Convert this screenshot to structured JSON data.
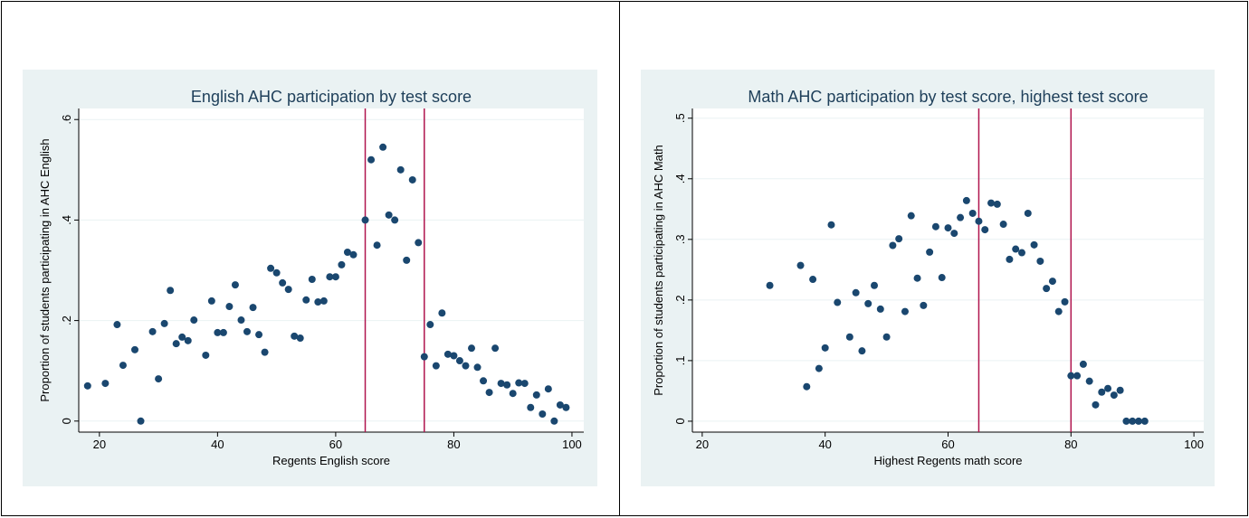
{
  "chart_data": [
    {
      "type": "scatter",
      "title": "English AHC participation by test score",
      "x_label": "Regents English score",
      "y_label": "Proportion of students participating in AHC English",
      "color": "#1a476f",
      "line_color": "#b0144e",
      "grid": true,
      "xlim": [
        16.5,
        102
      ],
      "xticks": [
        20,
        40,
        60,
        80,
        100
      ],
      "ylim": [
        -0.022,
        0.622
      ],
      "yticks": [
        {
          "value": 0,
          "label": "0"
        },
        {
          "value": 0.2,
          "label": ".2"
        },
        {
          "value": 0.4,
          "label": ".4"
        },
        {
          "value": 0.6,
          "label": ".6"
        }
      ],
      "vlines": [
        65,
        75
      ],
      "x": [
        18,
        21,
        23,
        24,
        26,
        27,
        29,
        30,
        31,
        32,
        33,
        34,
        35,
        36,
        38,
        39,
        40,
        41,
        42,
        43,
        44,
        45,
        46,
        47,
        48,
        49,
        50,
        51,
        52,
        53,
        54,
        55,
        56,
        57,
        58,
        59,
        60,
        61,
        62,
        63,
        65,
        66,
        67,
        68,
        69,
        70,
        71,
        72,
        73,
        74,
        75,
        76,
        77,
        78,
        79,
        80,
        81,
        82,
        83,
        84,
        85,
        86,
        87,
        88,
        89,
        90,
        91,
        92,
        93,
        94,
        95,
        96,
        97,
        98,
        99
      ],
      "values": [
        0.07,
        0.075,
        0.192,
        0.111,
        0.142,
        0,
        0.178,
        0.084,
        0.194,
        0.26,
        0.154,
        0.167,
        0.16,
        0.201,
        0.131,
        0.239,
        0.176,
        0.176,
        0.228,
        0.271,
        0.201,
        0.178,
        0.226,
        0.172,
        0.137,
        0.304,
        0.295,
        0.275,
        0.262,
        0.169,
        0.165,
        0.241,
        0.282,
        0.237,
        0.239,
        0.287,
        0.287,
        0.311,
        0.336,
        0.331,
        0.4,
        0.52,
        0.35,
        0.545,
        0.41,
        0.4,
        0.5,
        0.32,
        0.48,
        0.355,
        0.128,
        0.192,
        0.11,
        0.215,
        0.133,
        0.13,
        0.12,
        0.11,
        0.145,
        0.107,
        0.08,
        0.057,
        0.145,
        0.075,
        0.072,
        0.055,
        0.076,
        0.075,
        0.027,
        0.052,
        0.014,
        0.064,
        0,
        0.032,
        0.027
      ]
    },
    {
      "type": "scatter",
      "title": "Math AHC participation by test score, highest test score",
      "x_label": "Highest Regents math score",
      "y_label": "Proportion of students participating in AHC Math",
      "color": "#1a476f",
      "line_color": "#b0144e",
      "grid": true,
      "xlim": [
        18.4,
        101.6
      ],
      "xticks": [
        20,
        40,
        60,
        80,
        100
      ],
      "ylim": [
        -0.018,
        0.516
      ],
      "yticks": [
        {
          "value": 0,
          "label": "0"
        },
        {
          "value": 0.1,
          "label": ".1"
        },
        {
          "value": 0.2,
          "label": ".2"
        },
        {
          "value": 0.3,
          "label": ".3"
        },
        {
          "value": 0.4,
          "label": ".4"
        },
        {
          "value": 0.5,
          "label": ".5"
        }
      ],
      "vlines": [
        65,
        80
      ],
      "x": [
        31,
        36,
        37,
        38,
        39,
        40,
        41,
        42,
        44,
        45,
        46,
        47,
        48,
        49,
        50,
        51,
        52,
        53,
        54,
        55,
        56,
        57,
        58,
        59,
        60,
        61,
        62,
        63,
        64,
        65,
        66,
        67,
        68,
        69,
        70,
        71,
        72,
        73,
        74,
        75,
        76,
        77,
        78,
        79,
        80,
        81,
        82,
        83,
        84,
        85,
        86,
        87,
        88,
        89,
        90,
        91,
        92
      ],
      "values": [
        0.224,
        0.257,
        0.057,
        0.234,
        0.087,
        0.121,
        0.324,
        0.196,
        0.139,
        0.212,
        0.116,
        0.194,
        0.224,
        0.185,
        0.139,
        0.29,
        0.301,
        0.181,
        0.339,
        0.236,
        0.191,
        0.279,
        0.321,
        0.237,
        0.319,
        0.31,
        0.336,
        0.364,
        0.343,
        0.33,
        0.316,
        0.36,
        0.358,
        0.325,
        0.267,
        0.284,
        0.278,
        0.343,
        0.291,
        0.264,
        0.219,
        0.231,
        0.181,
        0.197,
        0.075,
        0.075,
        0.094,
        0.066,
        0.027,
        0.048,
        0.054,
        0.043,
        0.051,
        0,
        0,
        0,
        0
      ]
    }
  ]
}
